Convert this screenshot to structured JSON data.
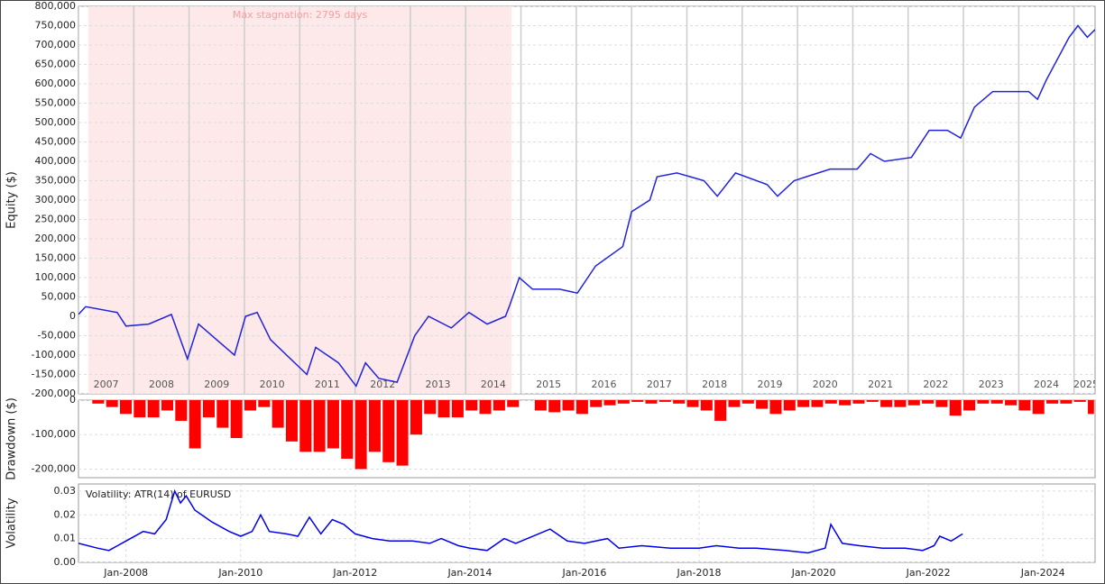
{
  "chart_data": [
    {
      "type": "line",
      "y_label": "Equity ($)",
      "color": "#2222dd",
      "grid": true,
      "annotation": "Max stagnation: 2795 days",
      "stagnation": [
        2007.18,
        2014.83
      ],
      "xlim": [
        2007,
        2025.38
      ],
      "xtick_labels": "between",
      "xticks": [
        2007,
        2008,
        2009,
        2010,
        2011,
        2012,
        2013,
        2014,
        2015,
        2016,
        2017,
        2018,
        2019,
        2020,
        2021,
        2022,
        2023,
        2024,
        2025
      ],
      "ylim": [
        -200000,
        800000
      ],
      "yticks": [
        {
          "value": -200000,
          "label": "-200,000"
        },
        {
          "value": -150000,
          "label": "-150,000"
        },
        {
          "value": -100000,
          "label": "-100,000"
        },
        {
          "value": -50000,
          "label": "-50,000"
        },
        0,
        {
          "value": 50000,
          "label": "50,000"
        },
        {
          "value": 100000,
          "label": "100,000"
        },
        {
          "value": 150000,
          "label": "150,000"
        },
        {
          "value": 200000,
          "label": "200,000"
        },
        {
          "value": 250000,
          "label": "250,000"
        },
        {
          "value": 300000,
          "label": "300,000"
        },
        {
          "value": 350000,
          "label": "350,000"
        },
        {
          "value": 400000,
          "label": "400,000"
        },
        {
          "value": 450000,
          "label": "450,000"
        },
        {
          "value": 500000,
          "label": "500,000"
        },
        {
          "value": 550000,
          "label": "550,000"
        },
        {
          "value": 600000,
          "label": "600,000"
        },
        {
          "value": 650000,
          "label": "650,000"
        },
        {
          "value": 700000,
          "label": "700,000"
        },
        {
          "value": 750000,
          "label": "750,000"
        },
        {
          "value": 800000,
          "label": "800,000"
        }
      ],
      "x": [
        2007.0,
        2007.13,
        2007.7,
        2007.86,
        2008.27,
        2008.68,
        2008.97,
        2009.17,
        2009.82,
        2010.02,
        2010.23,
        2010.47,
        2011.13,
        2011.29,
        2011.7,
        2012.02,
        2012.19,
        2012.43,
        2012.76,
        2013.08,
        2013.33,
        2013.74,
        2014.06,
        2014.39,
        2014.72,
        2014.8,
        2014.97,
        2015.21,
        2015.7,
        2016.02,
        2016.35,
        2016.84,
        2017.0,
        2017.33,
        2017.46,
        2017.82,
        2018.31,
        2018.55,
        2018.88,
        2019.45,
        2019.64,
        2019.94,
        2020.59,
        2021.08,
        2021.32,
        2021.57,
        2022.06,
        2022.38,
        2022.71,
        2022.95,
        2023.2,
        2023.53,
        2024.18,
        2024.34,
        2024.5,
        2024.91,
        2025.07,
        2025.24,
        2025.38
      ],
      "values": [
        5000,
        25000,
        10000,
        -25000,
        -20000,
        5000,
        -110000,
        -20000,
        -100000,
        0,
        10000,
        -60000,
        -150000,
        -80000,
        -120000,
        -180000,
        -120000,
        -160000,
        -170000,
        -50000,
        0,
        -30000,
        10000,
        -20000,
        0,
        30000,
        100000,
        70000,
        70000,
        60000,
        130000,
        180000,
        270000,
        300000,
        360000,
        370000,
        350000,
        310000,
        370000,
        340000,
        310000,
        350000,
        380000,
        380000,
        420000,
        400000,
        410000,
        480000,
        480000,
        460000,
        540000,
        580000,
        580000,
        560000,
        610000,
        720000,
        750000,
        720000,
        740000
      ]
    },
    {
      "type": "bar",
      "y_label": "Drawdown ($)",
      "color": "#ff0000",
      "grid": true,
      "xlim": [
        2007,
        2025.38
      ],
      "ylim": [
        -225000,
        0
      ],
      "yticks": [
        {
          "value": -200000,
          "label": "-200,000"
        },
        {
          "value": -100000,
          "label": "-100,000"
        },
        0
      ],
      "x": [
        2007.0,
        2007.25,
        2007.5,
        2007.75,
        2008.0,
        2008.25,
        2008.5,
        2008.75,
        2009.0,
        2009.25,
        2009.5,
        2009.75,
        2010.0,
        2010.25,
        2010.5,
        2010.75,
        2011.0,
        2011.25,
        2011.5,
        2011.75,
        2012.0,
        2012.25,
        2012.5,
        2012.75,
        2013.0,
        2013.25,
        2013.5,
        2013.75,
        2014.0,
        2014.25,
        2014.5,
        2014.75,
        2015.0,
        2015.25,
        2015.5,
        2015.75,
        2016.0,
        2016.25,
        2016.5,
        2016.75,
        2017.0,
        2017.25,
        2017.5,
        2017.75,
        2018.0,
        2018.25,
        2018.5,
        2018.75,
        2019.0,
        2019.25,
        2019.5,
        2019.75,
        2020.0,
        2020.25,
        2020.5,
        2020.75,
        2021.0,
        2021.25,
        2021.5,
        2021.75,
        2022.0,
        2022.25,
        2022.5,
        2022.75,
        2023.0,
        2023.25,
        2023.5,
        2023.75,
        2024.0,
        2024.25,
        2024.5,
        2024.75,
        2025.0,
        2025.25
      ],
      "values": [
        0,
        -10000,
        -20000,
        -40000,
        -50000,
        -50000,
        -30000,
        -60000,
        -140000,
        -50000,
        -80000,
        -110000,
        -30000,
        -20000,
        -80000,
        -120000,
        -150000,
        -150000,
        -140000,
        -170000,
        -200000,
        -150000,
        -180000,
        -190000,
        -100000,
        -40000,
        -50000,
        -50000,
        -30000,
        -40000,
        -30000,
        -20000,
        0,
        -30000,
        -35000,
        -30000,
        -40000,
        -20000,
        -15000,
        -10000,
        -5000,
        -10000,
        -5000,
        -10000,
        -20000,
        -30000,
        -60000,
        -20000,
        -10000,
        -25000,
        -40000,
        -30000,
        -20000,
        -20000,
        -10000,
        -15000,
        -10000,
        -5000,
        -20000,
        -20000,
        -15000,
        -10000,
        -20000,
        -45000,
        -30000,
        -10000,
        -10000,
        -15000,
        -30000,
        -40000,
        -10000,
        -10000,
        -5000,
        -40000
      ]
    },
    {
      "type": "line",
      "y_label": "Volatility",
      "color": "#0000ee",
      "grid": true,
      "annotation": "Volatility: ATR(14) of EURUSD",
      "xlim": [
        2007.17,
        2024.91
      ],
      "xticks": [
        {
          "value": 2008,
          "label": "Jan-2008"
        },
        {
          "value": 2010,
          "label": "Jan-2010"
        },
        {
          "value": 2012,
          "label": "Jan-2012"
        },
        {
          "value": 2014,
          "label": "Jan-2014"
        },
        {
          "value": 2016,
          "label": "Jan-2016"
        },
        {
          "value": 2018,
          "label": "Jan-2018"
        },
        {
          "value": 2020,
          "label": "Jan-2020"
        },
        {
          "value": 2022,
          "label": "Jan-2022"
        },
        {
          "value": 2024,
          "label": "Jan-2024"
        }
      ],
      "ylim": [
        0,
        0.033
      ],
      "yticks": [
        {
          "value": 0,
          "label": "0.00"
        },
        0.01,
        0.02,
        0.03
      ],
      "x": [
        2007.17,
        2007.5,
        2007.7,
        2008.0,
        2008.3,
        2008.5,
        2008.7,
        2008.85,
        2008.95,
        2009.05,
        2009.2,
        2009.5,
        2009.8,
        2010.0,
        2010.2,
        2010.35,
        2010.5,
        2010.8,
        2011.0,
        2011.2,
        2011.4,
        2011.6,
        2011.8,
        2012.0,
        2012.3,
        2012.6,
        2013.0,
        2013.3,
        2013.5,
        2013.8,
        2014.0,
        2014.3,
        2014.6,
        2014.8,
        2015.4,
        2015.7,
        2016.0,
        2016.4,
        2016.6,
        2017.0,
        2017.5,
        2018.0,
        2018.3,
        2018.7,
        2019.0,
        2019.5,
        2019.9,
        2020.2,
        2020.3,
        2020.5,
        2020.8,
        2021.2,
        2021.6,
        2021.9,
        2022.1,
        2022.2,
        2022.4,
        2022.6
      ],
      "values": [
        0.008,
        0.006,
        0.005,
        0.009,
        0.013,
        0.012,
        0.018,
        0.03,
        0.025,
        0.028,
        0.022,
        0.017,
        0.013,
        0.011,
        0.013,
        0.02,
        0.013,
        0.012,
        0.011,
        0.019,
        0.012,
        0.018,
        0.016,
        0.012,
        0.01,
        0.009,
        0.009,
        0.008,
        0.01,
        0.007,
        0.006,
        0.005,
        0.01,
        0.008,
        0.014,
        0.009,
        0.008,
        0.01,
        0.006,
        0.007,
        0.006,
        0.006,
        0.007,
        0.006,
        0.006,
        0.005,
        0.004,
        0.006,
        0.016,
        0.008,
        0.007,
        0.006,
        0.006,
        0.005,
        0.007,
        0.011,
        0.009,
        0.012
      ]
    }
  ]
}
